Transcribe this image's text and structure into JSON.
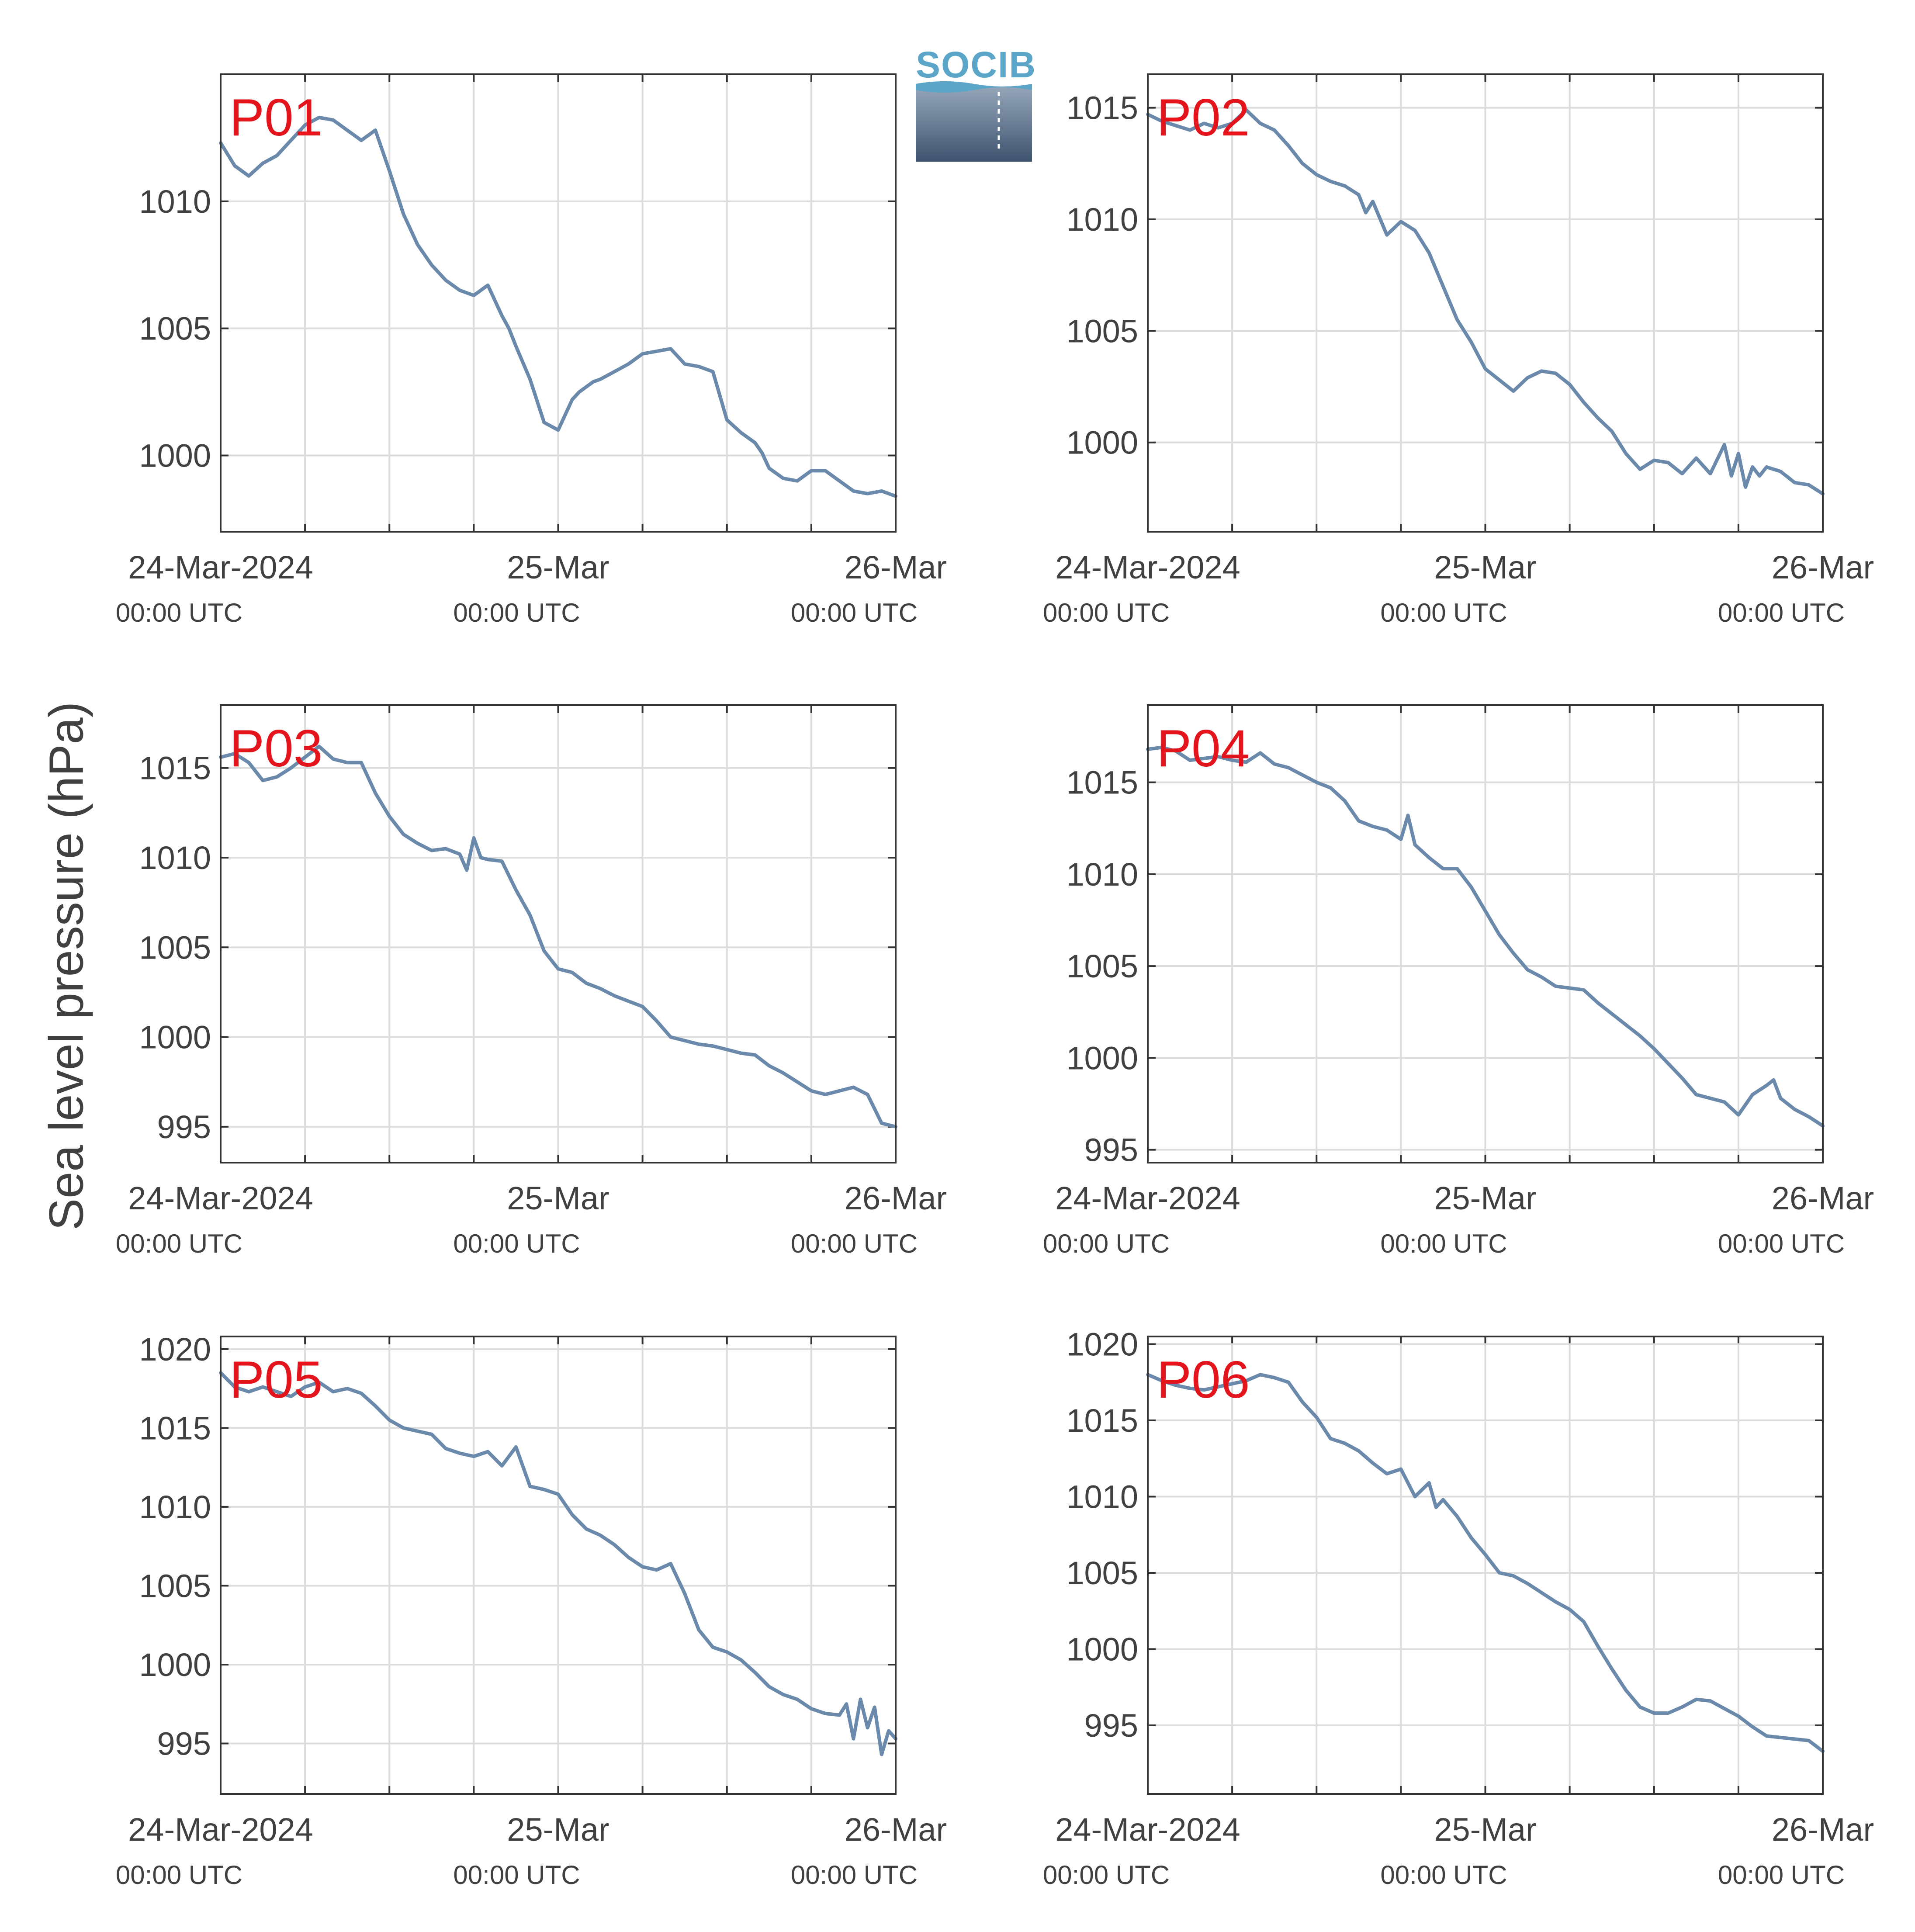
{
  "figure": {
    "ylabel": "Sea level pressure (hPa)",
    "logo_text": "SOCIB",
    "colors": {
      "line": "#6b8aab",
      "panel_label": "#e3141c",
      "grid": "#dcdcdc",
      "axis": "#333333",
      "text": "#404040"
    }
  },
  "chart_data": [
    {
      "type": "line",
      "title": "P01",
      "x_unit": "hours since 24-Mar-2024 00:00 UTC",
      "xlim": [
        0,
        48
      ],
      "ylim": [
        997,
        1015
      ],
      "yticks": [
        1000,
        1005,
        1010
      ],
      "xticks": [
        {
          "x": 0,
          "date": "24-Mar-2024",
          "time": "00:00 UTC"
        },
        {
          "x": 24,
          "date": "25-Mar",
          "time": "00:00 UTC"
        },
        {
          "x": 48,
          "date": "26-Mar",
          "time": "00:00 UTC"
        }
      ],
      "x": [
        0,
        1,
        2,
        3,
        4,
        5,
        6,
        7,
        8,
        9,
        10,
        11,
        11.5,
        12,
        13,
        14,
        15,
        16,
        17,
        18,
        19,
        20,
        20.5,
        21,
        22,
        23,
        24,
        25,
        25.5,
        26,
        26.5,
        27,
        28,
        29,
        30,
        31,
        32,
        33,
        34,
        35,
        36,
        37,
        38,
        38.5,
        39,
        40,
        41,
        42,
        43,
        44,
        45,
        46,
        47,
        48
      ],
      "y": [
        1012.3,
        1011.4,
        1011.0,
        1011.5,
        1011.8,
        1012.4,
        1013.0,
        1013.3,
        1013.2,
        1012.8,
        1012.4,
        1012.8,
        1012.0,
        1011.2,
        1009.5,
        1008.3,
        1007.5,
        1006.9,
        1006.5,
        1006.3,
        1006.7,
        1005.5,
        1005.0,
        1004.3,
        1003.0,
        1001.3,
        1001.0,
        1002.2,
        1002.5,
        1002.7,
        1002.9,
        1003.0,
        1003.3,
        1003.6,
        1004.0,
        1004.1,
        1004.2,
        1003.6,
        1003.5,
        1003.3,
        1001.4,
        1000.9,
        1000.5,
        1000.1,
        999.5,
        999.1,
        999.0,
        999.4,
        999.4,
        999.0,
        998.6,
        998.5,
        998.6,
        998.4
      ],
      "series": [
        {
          "color": "#6b8aab"
        }
      ]
    },
    {
      "type": "line",
      "title": "P02",
      "x_unit": "hours since 24-Mar-2024 00:00 UTC",
      "xlim": [
        0,
        48
      ],
      "ylim": [
        996,
        1016.5
      ],
      "yticks": [
        1000,
        1005,
        1010,
        1015
      ],
      "xticks": [
        {
          "x": 0,
          "date": "24-Mar-2024",
          "time": "00:00 UTC"
        },
        {
          "x": 24,
          "date": "25-Mar",
          "time": "00:00 UTC"
        },
        {
          "x": 48,
          "date": "26-Mar",
          "time": "00:00 UTC"
        }
      ],
      "x": [
        0,
        1,
        2,
        3,
        4,
        5,
        6,
        7,
        8,
        9,
        10,
        11,
        12,
        13,
        14,
        15,
        15.5,
        16,
        17,
        18,
        18.5,
        19,
        20,
        21,
        22,
        23,
        24,
        25,
        26,
        27,
        28,
        29,
        30,
        31,
        32,
        33,
        34,
        35,
        36,
        37,
        38,
        39,
        40,
        41,
        41.5,
        42,
        42.5,
        43,
        43.5,
        44,
        45,
        46,
        47,
        48
      ],
      "y": [
        1014.7,
        1014.4,
        1014.2,
        1014.0,
        1014.3,
        1014.1,
        1014.3,
        1014.9,
        1014.3,
        1014.0,
        1013.3,
        1012.5,
        1012.0,
        1011.7,
        1011.5,
        1011.1,
        1010.3,
        1010.8,
        1009.3,
        1009.9,
        1009.7,
        1009.5,
        1008.5,
        1007.0,
        1005.5,
        1004.5,
        1003.3,
        1002.8,
        1002.3,
        1002.9,
        1003.2,
        1003.1,
        1002.6,
        1001.8,
        1001.1,
        1000.5,
        999.5,
        998.8,
        999.2,
        999.1,
        998.6,
        999.3,
        998.6,
        999.9,
        998.5,
        999.5,
        998.0,
        998.9,
        998.5,
        998.9,
        998.7,
        998.2,
        998.1,
        997.7
      ],
      "series": [
        {
          "color": "#6b8aab"
        }
      ]
    },
    {
      "type": "line",
      "title": "P03",
      "x_unit": "hours since 24-Mar-2024 00:00 UTC",
      "xlim": [
        0,
        48
      ],
      "ylim": [
        993,
        1018.5
      ],
      "yticks": [
        995,
        1000,
        1005,
        1010,
        1015
      ],
      "xticks": [
        {
          "x": 0,
          "date": "24-Mar-2024",
          "time": "00:00 UTC"
        },
        {
          "x": 24,
          "date": "25-Mar",
          "time": "00:00 UTC"
        },
        {
          "x": 48,
          "date": "26-Mar",
          "time": "00:00 UTC"
        }
      ],
      "x": [
        0,
        1,
        2,
        3,
        4,
        5,
        6,
        7,
        8,
        9,
        10,
        11,
        12,
        13,
        14,
        15,
        16,
        17,
        17.5,
        18,
        18.5,
        19,
        20,
        21,
        22,
        23,
        24,
        25,
        26,
        27,
        28,
        29,
        30,
        31,
        32,
        33,
        34,
        35,
        36,
        37,
        38,
        39,
        40,
        41,
        42,
        43,
        44,
        45,
        46,
        47,
        48
      ],
      "y": [
        1015.6,
        1015.8,
        1015.3,
        1014.3,
        1014.5,
        1015.0,
        1015.6,
        1016.2,
        1015.5,
        1015.3,
        1015.3,
        1013.6,
        1012.3,
        1011.3,
        1010.8,
        1010.4,
        1010.5,
        1010.2,
        1009.3,
        1011.1,
        1010.0,
        1009.9,
        1009.8,
        1008.2,
        1006.8,
        1004.8,
        1003.8,
        1003.6,
        1003.0,
        1002.7,
        1002.3,
        1002.0,
        1001.7,
        1000.9,
        1000.0,
        999.8,
        999.6,
        999.5,
        999.3,
        999.1,
        999.0,
        998.4,
        998.0,
        997.5,
        997.0,
        996.8,
        997.0,
        997.2,
        996.8,
        995.2,
        995.0
      ],
      "series": [
        {
          "color": "#6b8aab"
        }
      ]
    },
    {
      "type": "line",
      "title": "P04",
      "x_unit": "hours since 24-Mar-2024 00:00 UTC",
      "xlim": [
        0,
        48
      ],
      "ylim": [
        994.3,
        1019.2
      ],
      "yticks": [
        995,
        1000,
        1005,
        1010,
        1015
      ],
      "xticks": [
        {
          "x": 0,
          "date": "24-Mar-2024",
          "time": "00:00 UTC"
        },
        {
          "x": 24,
          "date": "25-Mar",
          "time": "00:00 UTC"
        },
        {
          "x": 48,
          "date": "26-Mar",
          "time": "00:00 UTC"
        }
      ],
      "x": [
        0,
        1,
        2,
        3,
        4,
        5,
        6,
        7,
        8,
        9,
        10,
        11,
        12,
        13,
        14,
        15,
        16,
        17,
        18,
        18.5,
        19,
        20,
        21,
        22,
        23,
        24,
        25,
        26,
        27,
        28,
        29,
        30,
        31,
        32,
        33,
        34,
        35,
        36,
        37,
        38,
        39,
        40,
        41,
        42,
        43,
        44,
        44.5,
        45,
        46,
        47,
        48
      ],
      "y": [
        1016.8,
        1016.9,
        1016.7,
        1016.2,
        1016.3,
        1016.4,
        1016.2,
        1016.1,
        1016.6,
        1016.0,
        1015.8,
        1015.4,
        1015.0,
        1014.7,
        1014.0,
        1012.9,
        1012.6,
        1012.4,
        1011.9,
        1013.2,
        1011.6,
        1010.9,
        1010.3,
        1010.3,
        1009.3,
        1008.0,
        1006.7,
        1005.7,
        1004.8,
        1004.4,
        1003.9,
        1003.8,
        1003.7,
        1003.0,
        1002.4,
        1001.8,
        1001.2,
        1000.5,
        999.7,
        998.9,
        998.0,
        997.8,
        997.6,
        996.9,
        998.0,
        998.5,
        998.8,
        997.8,
        997.2,
        996.8,
        996.3
      ],
      "series": [
        {
          "color": "#6b8aab"
        }
      ]
    },
    {
      "type": "line",
      "title": "P05",
      "x_unit": "hours since 24-Mar-2024 00:00 UTC",
      "xlim": [
        0,
        48
      ],
      "ylim": [
        991.8,
        1020.8
      ],
      "yticks": [
        995,
        1000,
        1005,
        1010,
        1015,
        1020
      ],
      "xticks": [
        {
          "x": 0,
          "date": "24-Mar-2024",
          "time": "00:00 UTC"
        },
        {
          "x": 24,
          "date": "25-Mar",
          "time": "00:00 UTC"
        },
        {
          "x": 48,
          "date": "26-Mar",
          "time": "00:00 UTC"
        }
      ],
      "x": [
        0,
        1,
        2,
        3,
        4,
        5,
        6,
        7,
        8,
        9,
        10,
        11,
        12,
        13,
        14,
        15,
        16,
        17,
        18,
        19,
        20,
        21,
        22,
        23,
        24,
        25,
        26,
        27,
        28,
        29,
        30,
        31,
        32,
        33,
        34,
        35,
        36,
        37,
        38,
        39,
        40,
        41,
        42,
        43,
        44,
        44.5,
        45,
        45.5,
        46,
        46.5,
        47,
        47.5,
        48
      ],
      "y": [
        1018.5,
        1017.6,
        1017.3,
        1017.6,
        1017.3,
        1017.0,
        1017.6,
        1017.9,
        1017.3,
        1017.5,
        1017.2,
        1016.4,
        1015.5,
        1015.0,
        1014.8,
        1014.6,
        1013.7,
        1013.4,
        1013.2,
        1013.5,
        1012.6,
        1013.8,
        1011.3,
        1011.1,
        1010.8,
        1009.5,
        1008.6,
        1008.2,
        1007.6,
        1006.8,
        1006.2,
        1006.0,
        1006.4,
        1004.5,
        1002.2,
        1001.1,
        1000.8,
        1000.3,
        999.5,
        998.6,
        998.1,
        997.8,
        997.2,
        996.9,
        996.8,
        997.5,
        995.3,
        997.8,
        996.0,
        997.3,
        994.3,
        995.8,
        995.3
      ],
      "series": [
        {
          "color": "#6b8aab"
        }
      ]
    },
    {
      "type": "line",
      "title": "P06",
      "x_unit": "hours since 24-Mar-2024 00:00 UTC",
      "xlim": [
        0,
        48
      ],
      "ylim": [
        990.5,
        1020.5
      ],
      "yticks": [
        995,
        1000,
        1005,
        1010,
        1015,
        1020
      ],
      "xticks": [
        {
          "x": 0,
          "date": "24-Mar-2024",
          "time": "00:00 UTC"
        },
        {
          "x": 24,
          "date": "25-Mar",
          "time": "00:00 UTC"
        },
        {
          "x": 48,
          "date": "26-Mar",
          "time": "00:00 UTC"
        }
      ],
      "x": [
        0,
        1,
        2,
        3,
        4,
        5,
        6,
        7,
        8,
        9,
        10,
        11,
        12,
        13,
        14,
        15,
        16,
        17,
        18,
        19,
        20,
        20.5,
        21,
        22,
        23,
        24,
        25,
        26,
        27,
        28,
        29,
        30,
        31,
        32,
        33,
        34,
        35,
        36,
        37,
        38,
        39,
        40,
        41,
        42,
        43,
        44,
        45,
        46,
        47,
        48
      ],
      "y": [
        1018.0,
        1017.6,
        1017.3,
        1017.1,
        1017.0,
        1017.2,
        1017.4,
        1017.6,
        1018.0,
        1017.8,
        1017.5,
        1016.2,
        1015.2,
        1013.8,
        1013.5,
        1013.0,
        1012.2,
        1011.5,
        1011.8,
        1010.0,
        1010.9,
        1009.3,
        1009.8,
        1008.7,
        1007.3,
        1006.2,
        1005.0,
        1004.8,
        1004.3,
        1003.7,
        1003.1,
        1002.6,
        1001.8,
        1000.2,
        998.7,
        997.3,
        996.2,
        995.8,
        995.8,
        996.2,
        996.7,
        996.6,
        996.1,
        995.6,
        994.9,
        994.3,
        994.2,
        994.1,
        994.0,
        993.3
      ],
      "series": [
        {
          "color": "#6b8aab"
        }
      ]
    }
  ]
}
